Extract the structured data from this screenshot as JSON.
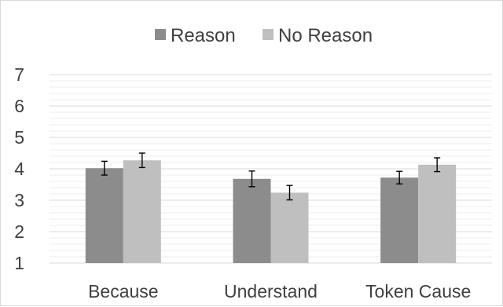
{
  "chart_data": {
    "type": "bar",
    "categories": [
      "Because",
      "Understand",
      "Token Cause"
    ],
    "series": [
      {
        "name": "Reason",
        "values": [
          4.02,
          3.68,
          3.72
        ],
        "error": [
          0.22,
          0.25,
          0.2
        ],
        "color": "#8c8c8c"
      },
      {
        "name": "No Reason",
        "values": [
          4.27,
          3.24,
          4.13
        ],
        "error": [
          0.23,
          0.23,
          0.22
        ],
        "color": "#bfbfbf"
      }
    ],
    "ylim": [
      1,
      7
    ],
    "yticks": [
      "1",
      "2",
      "3",
      "4",
      "5",
      "6",
      "7"
    ],
    "legend_position": "top-center",
    "grid": true,
    "colors": {
      "major_grid": "#d9d9d9",
      "minor_grid": "#eeeeee",
      "text": "#404040",
      "error_bar": "#000000"
    }
  }
}
